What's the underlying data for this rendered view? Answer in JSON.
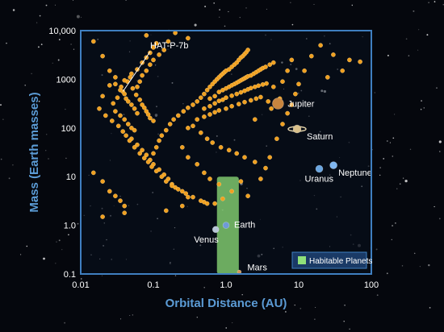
{
  "colors": {
    "background": "#05070d",
    "plot_border": "#3f7fc0",
    "axis_title": "#5b9bd5",
    "exoplanet": "#f0a020",
    "habitable_zone": "#8fe07a",
    "legend_box": "#1a3a66"
  },
  "chart_data": {
    "type": "scatter",
    "xlabel": "Orbital Distance (AU)",
    "ylabel": "Mass (Earth masses)",
    "x_scale": "log",
    "y_scale": "log",
    "xlim": [
      0.01,
      100
    ],
    "ylim": [
      0.1,
      10000
    ],
    "x_ticks": [
      "0.01",
      "0.1",
      "1.0",
      "10",
      "100"
    ],
    "y_ticks": [
      "10,000",
      "1000",
      "100",
      "10",
      "1.0",
      "0.1"
    ],
    "grid": false,
    "legend": {
      "placement": "bottom-right",
      "entries": [
        "Habitable Planets"
      ]
    },
    "annotation": {
      "label": "HAT-P-7b",
      "x": 0.038,
      "y": 560
    },
    "habitable_zone": {
      "x_range": [
        0.75,
        1.5
      ],
      "y_range": [
        0.1,
        10
      ]
    },
    "solar_system": [
      {
        "name": "Venus",
        "x": 0.72,
        "y": 0.82,
        "color": "#b8c6d8"
      },
      {
        "name": "Earth",
        "x": 1.0,
        "y": 1.0,
        "color": "#6f9ad6"
      },
      {
        "name": "Mars",
        "x": 1.52,
        "y": 0.11,
        "color": "#d39a5a"
      },
      {
        "name": "Jupiter",
        "x": 5.2,
        "y": 318,
        "color": "#c7853f"
      },
      {
        "name": "Saturn",
        "x": 9.5,
        "y": 95,
        "color": "#d9c08a"
      },
      {
        "name": "Uranus",
        "x": 19.2,
        "y": 14.5,
        "color": "#6aa6e0"
      },
      {
        "name": "Neptune",
        "x": 30.1,
        "y": 17.1,
        "color": "#7fb6f0"
      }
    ],
    "exoplanets": [
      [
        0.015,
        6000
      ],
      [
        0.02,
        3000
      ],
      [
        0.025,
        1500
      ],
      [
        0.03,
        800
      ],
      [
        0.035,
        600
      ],
      [
        0.038,
        560
      ],
      [
        0.04,
        500
      ],
      [
        0.042,
        400
      ],
      [
        0.045,
        350
      ],
      [
        0.05,
        300
      ],
      [
        0.055,
        250
      ],
      [
        0.06,
        200
      ],
      [
        0.04,
        150
      ],
      [
        0.045,
        120
      ],
      [
        0.05,
        100
      ],
      [
        0.055,
        90
      ],
      [
        0.035,
        180
      ],
      [
        0.03,
        220
      ],
      [
        0.028,
        320
      ],
      [
        0.032,
        420
      ],
      [
        0.036,
        700
      ],
      [
        0.044,
        900
      ],
      [
        0.048,
        1100
      ],
      [
        0.052,
        650
      ],
      [
        0.058,
        480
      ],
      [
        0.065,
        380
      ],
      [
        0.07,
        300
      ],
      [
        0.075,
        260
      ],
      [
        0.08,
        220
      ],
      [
        0.085,
        190
      ],
      [
        0.09,
        160
      ],
      [
        0.1,
        140
      ],
      [
        0.06,
        700
      ],
      [
        0.065,
        900
      ],
      [
        0.07,
        1200
      ],
      [
        0.08,
        1500
      ],
      [
        0.09,
        2000
      ],
      [
        0.1,
        2500
      ],
      [
        0.12,
        3200
      ],
      [
        0.14,
        4000
      ],
      [
        0.16,
        6000
      ],
      [
        0.08,
        8000
      ],
      [
        0.2,
        9000
      ],
      [
        0.3,
        7000
      ],
      [
        0.05,
        60
      ],
      [
        0.06,
        45
      ],
      [
        0.07,
        35
      ],
      [
        0.08,
        28
      ],
      [
        0.09,
        22
      ],
      [
        0.1,
        18
      ],
      [
        0.12,
        14
      ],
      [
        0.14,
        11
      ],
      [
        0.16,
        9
      ],
      [
        0.18,
        7
      ],
      [
        0.2,
        6
      ],
      [
        0.25,
        5
      ],
      [
        0.015,
        12
      ],
      [
        0.02,
        8
      ],
      [
        0.025,
        5
      ],
      [
        0.03,
        4
      ],
      [
        0.035,
        3.2
      ],
      [
        0.04,
        2.5
      ],
      [
        0.1,
        30
      ],
      [
        0.11,
        40
      ],
      [
        0.12,
        55
      ],
      [
        0.13,
        70
      ],
      [
        0.15,
        90
      ],
      [
        0.17,
        120
      ],
      [
        0.19,
        150
      ],
      [
        0.22,
        180
      ],
      [
        0.26,
        220
      ],
      [
        0.3,
        260
      ],
      [
        0.35,
        300
      ],
      [
        0.4,
        350
      ],
      [
        0.45,
        420
      ],
      [
        0.5,
        500
      ],
      [
        0.55,
        600
      ],
      [
        0.6,
        700
      ],
      [
        0.65,
        800
      ],
      [
        0.7,
        900
      ],
      [
        0.75,
        1000
      ],
      [
        0.8,
        1100
      ],
      [
        0.85,
        1200
      ],
      [
        0.9,
        1300
      ],
      [
        0.95,
        1400
      ],
      [
        1.0,
        1500
      ],
      [
        1.1,
        1600
      ],
      [
        1.2,
        1800
      ],
      [
        1.3,
        2000
      ],
      [
        1.4,
        2200
      ],
      [
        1.5,
        2500
      ],
      [
        1.6,
        2800
      ],
      [
        1.7,
        3000
      ],
      [
        1.8,
        3300
      ],
      [
        1.9,
        3600
      ],
      [
        2.0,
        4000
      ],
      [
        0.6,
        400
      ],
      [
        0.7,
        450
      ],
      [
        0.8,
        550
      ],
      [
        0.9,
        600
      ],
      [
        1.0,
        650
      ],
      [
        1.1,
        700
      ],
      [
        1.2,
        750
      ],
      [
        1.3,
        800
      ],
      [
        1.4,
        850
      ],
      [
        1.5,
        900
      ],
      [
        1.6,
        950
      ],
      [
        1.7,
        1000
      ],
      [
        1.8,
        1050
      ],
      [
        1.9,
        1100
      ],
      [
        2.0,
        1150
      ],
      [
        2.2,
        1200
      ],
      [
        2.4,
        1300
      ],
      [
        2.6,
        1400
      ],
      [
        2.8,
        1500
      ],
      [
        3.0,
        1600
      ],
      [
        3.2,
        1700
      ],
      [
        3.5,
        1800
      ],
      [
        4.0,
        2000
      ],
      [
        4.5,
        2200
      ],
      [
        0.5,
        250
      ],
      [
        0.6,
        280
      ],
      [
        0.7,
        320
      ],
      [
        0.8,
        360
      ],
      [
        0.9,
        380
      ],
      [
        1.0,
        420
      ],
      [
        1.2,
        460
      ],
      [
        1.4,
        500
      ],
      [
        1.6,
        540
      ],
      [
        1.8,
        580
      ],
      [
        2.0,
        620
      ],
      [
        2.2,
        660
      ],
      [
        2.5,
        700
      ],
      [
        2.8,
        740
      ],
      [
        3.2,
        780
      ],
      [
        3.6,
        820
      ],
      [
        0.4,
        150
      ],
      [
        0.5,
        170
      ],
      [
        0.6,
        190
      ],
      [
        0.7,
        210
      ],
      [
        0.8,
        230
      ],
      [
        1.0,
        250
      ],
      [
        1.2,
        280
      ],
      [
        1.5,
        310
      ],
      [
        1.8,
        340
      ],
      [
        2.2,
        370
      ],
      [
        2.6,
        400
      ],
      [
        3.0,
        430
      ],
      [
        0.3,
        100
      ],
      [
        0.35,
        110
      ],
      [
        0.45,
        80
      ],
      [
        0.55,
        60
      ],
      [
        0.65,
        50
      ],
      [
        0.85,
        40
      ],
      [
        1.1,
        35
      ],
      [
        1.4,
        30
      ],
      [
        1.8,
        25
      ],
      [
        2.5,
        20
      ],
      [
        3.5,
        15
      ],
      [
        0.25,
        40
      ],
      [
        0.3,
        25
      ],
      [
        0.4,
        18
      ],
      [
        0.5,
        12
      ],
      [
        0.6,
        9
      ],
      [
        0.8,
        7
      ],
      [
        1.2,
        5
      ],
      [
        2.0,
        4
      ],
      [
        0.9,
        3.5
      ],
      [
        0.5,
        3
      ],
      [
        0.25,
        2.5
      ],
      [
        0.15,
        2
      ],
      [
        0.04,
        1.8
      ],
      [
        0.02,
        1.5
      ],
      [
        0.3,
        3.8
      ],
      [
        0.7,
        2.8
      ],
      [
        1.6,
        8
      ],
      [
        3.0,
        9
      ],
      [
        4.0,
        25
      ],
      [
        5.0,
        60
      ],
      [
        6.0,
        120
      ],
      [
        7.0,
        200
      ],
      [
        8.0,
        300
      ],
      [
        9.0,
        500
      ],
      [
        10,
        800
      ],
      [
        12,
        1500
      ],
      [
        15,
        3000
      ],
      [
        20,
        5000
      ],
      [
        30,
        3200
      ],
      [
        40,
        1500
      ],
      [
        50,
        2500
      ],
      [
        70,
        2300
      ],
      [
        25,
        1100
      ],
      [
        6,
        900
      ],
      [
        7,
        1500
      ],
      [
        8,
        2500
      ],
      [
        4.5,
        700
      ],
      [
        5.5,
        400
      ],
      [
        3.8,
        350
      ],
      [
        4.2,
        250
      ],
      [
        2.5,
        150
      ],
      [
        0.04,
        950
      ],
      [
        0.05,
        1300
      ],
      [
        0.06,
        1600
      ],
      [
        0.07,
        2200
      ],
      [
        0.08,
        2800
      ],
      [
        0.09,
        3500
      ],
      [
        0.1,
        4500
      ],
      [
        0.11,
        5500
      ],
      [
        0.03,
        1100
      ],
      [
        0.025,
        750
      ],
      [
        0.02,
        450
      ],
      [
        0.018,
        250
      ],
      [
        0.022,
        180
      ],
      [
        0.027,
        140
      ],
      [
        0.033,
        110
      ],
      [
        0.038,
        85
      ],
      [
        0.042,
        70
      ],
      [
        0.047,
        55
      ],
      [
        0.055,
        40
      ],
      [
        0.065,
        30
      ],
      [
        0.075,
        24
      ],
      [
        0.085,
        20
      ],
      [
        0.095,
        16
      ],
      [
        0.11,
        13
      ],
      [
        0.13,
        10
      ],
      [
        0.15,
        8
      ],
      [
        0.18,
        6.5
      ],
      [
        0.22,
        5.5
      ],
      [
        0.28,
        4.5
      ],
      [
        0.35,
        3.8
      ],
      [
        0.45,
        3.2
      ],
      [
        0.55,
        2.8
      ]
    ]
  }
}
